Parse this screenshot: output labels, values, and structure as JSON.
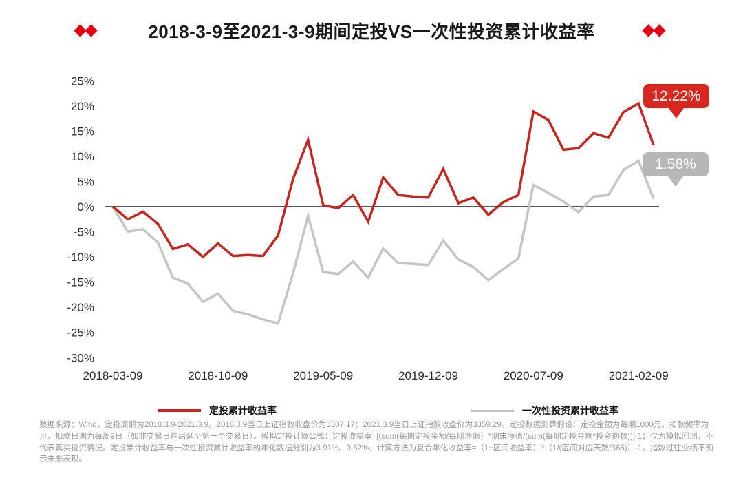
{
  "title": {
    "text": "2018-3-9至2021-3-9期间定投VS一次性投资累计收益率"
  },
  "decoration": {
    "diamond_color": "#e60012"
  },
  "chart_data": {
    "type": "line",
    "title": "2018-3-9至2021-3-9期间定投VS一次性投资累计收益率",
    "x_unit": "month",
    "x_range": [
      "2018-03-09",
      "2021-03-09"
    ],
    "x_tick_labels": [
      "2018-03-09",
      "2018-10-09",
      "2019-05-09",
      "2019-12-09",
      "2020-07-09",
      "2021-02-09"
    ],
    "x_tick_indices": [
      0,
      7,
      14,
      21,
      28,
      35
    ],
    "y_ticks": [
      25,
      20,
      15,
      10,
      5,
      0,
      -5,
      -10,
      -15,
      -20,
      -25,
      -30
    ],
    "y_tick_suffix": "%",
    "ylim": [
      -30,
      25
    ],
    "grid": false,
    "legend_position": "bottom",
    "axis_line_color": "#55565a",
    "series": [
      {
        "name": "定投累计收益率",
        "color": "#c7251d",
        "final_value": 12.22,
        "values": [
          0,
          -2.5,
          -1.0,
          -3.4,
          -8.4,
          -7.5,
          -10.0,
          -7.3,
          -9.8,
          -9.6,
          -9.8,
          -5.7,
          5.5,
          13.3,
          0.3,
          -0.3,
          2.3,
          -3.0,
          5.8,
          2.3,
          2.0,
          1.8,
          7.5,
          0.7,
          1.8,
          -1.6,
          0.9,
          2.3,
          18.9,
          17.2,
          11.3,
          11.6,
          14.6,
          13.7,
          18.8,
          20.5,
          12.22
        ]
      },
      {
        "name": "一次性投资累计收益率",
        "color": "#c5c5c6",
        "final_value": 1.58,
        "values": [
          0,
          -5.0,
          -4.5,
          -7.1,
          -14.1,
          -15.3,
          -18.9,
          -17.3,
          -20.7,
          -21.4,
          -22.4,
          -23.2,
          -13.2,
          -1.8,
          -13.0,
          -13.4,
          -10.9,
          -14.1,
          -8.3,
          -11.2,
          -11.4,
          -11.6,
          -6.7,
          -10.5,
          -12.0,
          -14.6,
          -12.4,
          -10.3,
          4.3,
          2.7,
          1.0,
          -1.1,
          2.0,
          2.3,
          7.3,
          9.1,
          1.58
        ]
      }
    ],
    "annotations": [
      {
        "series": "定投累计收益率",
        "text": "12.22%",
        "bubble_color": "#d6281e",
        "text_color": "#ffffff"
      },
      {
        "series": "一次性投资累计收益率",
        "text": "1.58%",
        "bubble_color": "#b6b7b9",
        "text_color": "#ffffff"
      }
    ]
  },
  "footnote": {
    "text": "数据来源：Wind，定投周期为2018.3.9-2021.3.9。2018.3.9当日上证指数收盘价为3307.17；2021.3.9当日上证指数收盘价为3359.29。定投数据测算假设：定投金额为每期1000元，扣款频率为月，扣款日期为每周9日（如非交易日往后延至第一个交易日）。模拟定投计算公式：定投收益率=[(sum(每期定投金额/每期净值）*期末净值/(sum(每期定投金额*投资期数))]-1；仅为模拟回测，不代表真实投资情况。定投累计收益率与一次性投资累计收益率的年化数据分别为3.91%、0.52%，计算方法为复合年化收益率=（1+区间收益率）^（1/(区间对应天数/365)）-1。指数过往业绩不预示未来表现。"
  }
}
